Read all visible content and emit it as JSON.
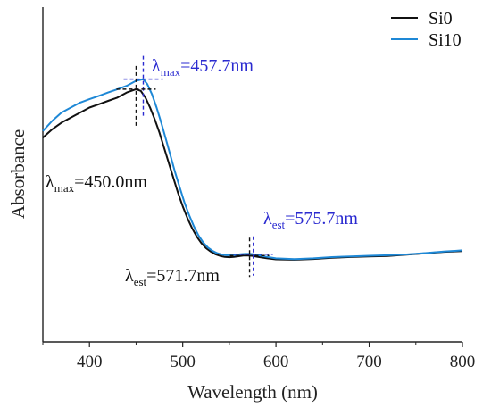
{
  "chart_data": {
    "type": "line",
    "xlabel": "Wavelength (nm)",
    "ylabel": "Absorbance",
    "xlim": [
      350,
      800
    ],
    "ylim": [
      0,
      1.0
    ],
    "x_ticks": [
      "400",
      "500",
      "600",
      "700",
      "800"
    ],
    "y_ticks_shown": false,
    "legend_position": "top-right",
    "series": [
      {
        "name": "Si0",
        "color": "#111111",
        "x": [
          350,
          360,
          370,
          380,
          390,
          400,
          410,
          420,
          430,
          440,
          450,
          455,
          460,
          465,
          470,
          475,
          480,
          485,
          490,
          495,
          500,
          505,
          510,
          515,
          520,
          525,
          530,
          535,
          540,
          545,
          550,
          555,
          560,
          565,
          570,
          575,
          580,
          590,
          600,
          620,
          640,
          660,
          680,
          700,
          720,
          740,
          760,
          780,
          800
        ],
        "y": [
          0.61,
          0.635,
          0.655,
          0.67,
          0.685,
          0.7,
          0.71,
          0.72,
          0.73,
          0.745,
          0.755,
          0.75,
          0.73,
          0.7,
          0.665,
          0.625,
          0.58,
          0.535,
          0.49,
          0.445,
          0.405,
          0.37,
          0.34,
          0.315,
          0.295,
          0.28,
          0.27,
          0.262,
          0.257,
          0.254,
          0.253,
          0.254,
          0.256,
          0.258,
          0.258,
          0.257,
          0.253,
          0.25,
          0.248,
          0.247,
          0.248,
          0.25,
          0.252,
          0.255,
          0.258,
          0.262,
          0.265,
          0.268,
          0.27
        ]
      },
      {
        "name": "Si10",
        "color": "#1e88d6",
        "x": [
          350,
          360,
          370,
          380,
          390,
          400,
          410,
          420,
          430,
          440,
          450,
          457.7,
          462,
          467,
          472,
          477,
          482,
          487,
          492,
          497,
          502,
          507,
          512,
          517,
          522,
          527,
          532,
          537,
          542,
          547,
          552,
          557,
          562,
          567,
          572,
          575.7,
          580,
          590,
          600,
          620,
          640,
          660,
          680,
          700,
          720,
          740,
          760,
          780,
          800
        ],
        "y": [
          0.63,
          0.66,
          0.685,
          0.7,
          0.715,
          0.725,
          0.735,
          0.745,
          0.755,
          0.765,
          0.78,
          0.785,
          0.77,
          0.74,
          0.7,
          0.655,
          0.605,
          0.555,
          0.505,
          0.46,
          0.415,
          0.378,
          0.345,
          0.318,
          0.297,
          0.282,
          0.272,
          0.265,
          0.261,
          0.259,
          0.259,
          0.26,
          0.262,
          0.263,
          0.263,
          0.262,
          0.258,
          0.254,
          0.251,
          0.249,
          0.25,
          0.252,
          0.254,
          0.257,
          0.26,
          0.263,
          0.266,
          0.269,
          0.272
        ]
      }
    ],
    "annotations": [
      {
        "id": "si10-max",
        "symbol": "λ",
        "sub": "max",
        "text": "=457.7nm",
        "x": 457.7,
        "y": 0.785,
        "color": "#2a2ad0"
      },
      {
        "id": "si0-max",
        "symbol": "λ",
        "sub": "max",
        "text": "=450.0nm",
        "x": 450.0,
        "y": 0.755,
        "color": "#111111"
      },
      {
        "id": "si10-est",
        "symbol": "λ",
        "sub": "est",
        "text": "=575.7nm",
        "x": 575.7,
        "y": 0.262,
        "color": "#2a2ad0"
      },
      {
        "id": "si0-est",
        "symbol": "λ",
        "sub": "est",
        "text": "=571.7nm",
        "x": 571.7,
        "y": 0.258,
        "color": "#111111"
      }
    ]
  }
}
